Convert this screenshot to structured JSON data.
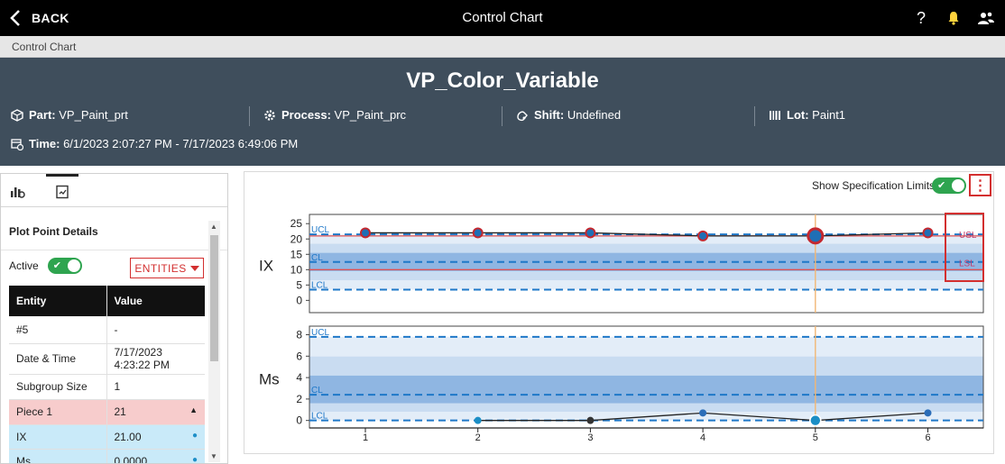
{
  "topbar": {
    "back_label": "BACK",
    "title": "Control Chart"
  },
  "breadcrumb": "Control Chart",
  "header": {
    "title": "VP_Color_Variable",
    "part_label": "Part:",
    "part_value": "VP_Paint_prt",
    "process_label": "Process:",
    "process_value": "VP_Paint_prc",
    "shift_label": "Shift:",
    "shift_value": "Undefined",
    "lot_label": "Lot:",
    "lot_value": "Paint1",
    "time_label": "Time:",
    "time_value": "6/1/2023 2:07:27 PM - 7/17/2023 6:49:06 PM"
  },
  "left_panel": {
    "title": "Plot Point Details",
    "active_label": "Active",
    "entities_label": "ENTITIES",
    "table": {
      "headers": [
        "Entity",
        "Value"
      ],
      "rows": [
        {
          "entity": "#5",
          "value": "-"
        },
        {
          "entity": "Date & Time",
          "value": "7/17/2023 4:23:22 PM"
        },
        {
          "entity": "Subgroup Size",
          "value": "1"
        },
        {
          "entity": "Piece 1",
          "value": "21"
        },
        {
          "entity": "IX",
          "value": "21.00"
        },
        {
          "entity": "Ms",
          "value": "0.0000"
        }
      ]
    }
  },
  "chart_panel": {
    "spec_limits_label": "Show Specification Limits"
  },
  "colors": {
    "accent_red": "#d32f2f",
    "toggle_green": "#2ea44f",
    "header_bg": "#3f4e5c",
    "line_blue": "#1f78c8"
  },
  "chart_data": [
    {
      "type": "line",
      "title": "IX",
      "x": [
        1,
        2,
        3,
        4,
        5,
        6
      ],
      "series": [
        {
          "values": [
            22,
            22,
            22,
            21,
            21,
            22
          ]
        }
      ],
      "ylim": [
        -4,
        28
      ],
      "yticks": [
        25,
        20,
        15,
        10,
        5,
        0
      ],
      "ucl": 21.5,
      "cl": 12.5,
      "lcl": 3.5,
      "usl": 21,
      "lsl": 10,
      "labels": {
        "ucl": "UCL",
        "cl": "CL",
        "lcl": "LCL",
        "usl": "USL",
        "lsl": "LSL"
      },
      "selected_x": 5
    },
    {
      "type": "line",
      "title": "Ms",
      "x": [
        1,
        2,
        3,
        4,
        5,
        6
      ],
      "series": [
        {
          "values": [
            null,
            0,
            0,
            0.7,
            0,
            0.7
          ]
        }
      ],
      "ylim": [
        -0.7,
        8.8
      ],
      "yticks": [
        8,
        6,
        4,
        2,
        0
      ],
      "xticks": [
        "1",
        "2",
        "3",
        "4",
        "5",
        "6"
      ],
      "ucl": 7.8,
      "cl": 2.4,
      "lcl": 0,
      "labels": {
        "ucl": "UCL",
        "cl": "CL",
        "lcl": "LCL"
      },
      "selected_x": 5
    }
  ]
}
